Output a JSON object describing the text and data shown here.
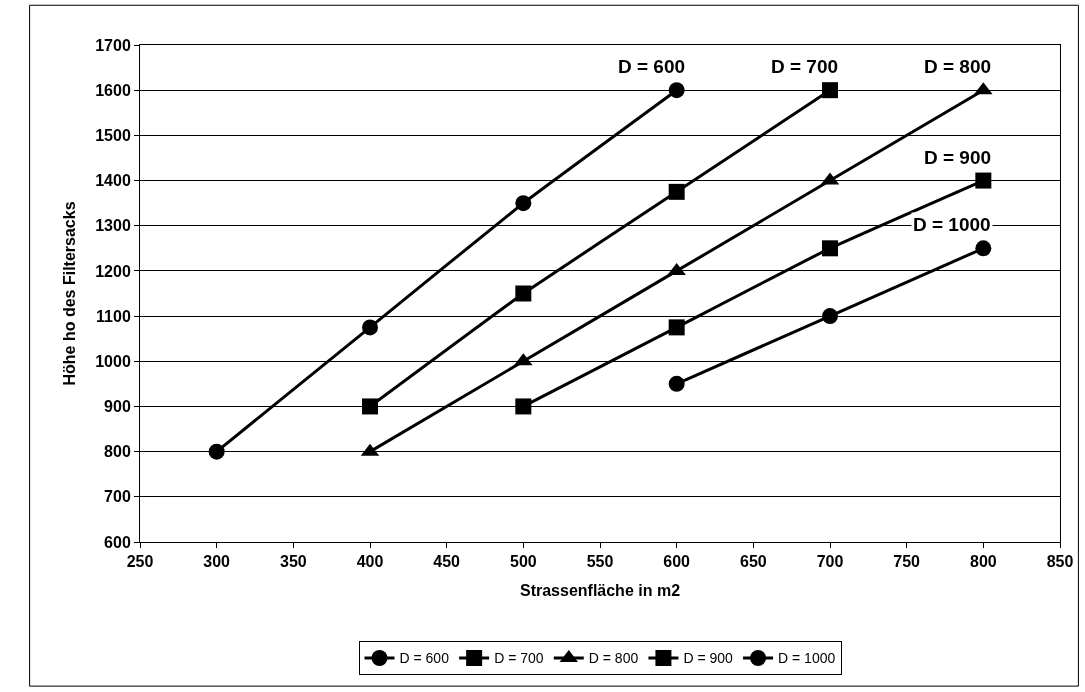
{
  "chart_data": {
    "type": "line",
    "xlabel": "Strassenfläche in m2",
    "ylabel": "Höhe ho des Filtersacks",
    "xlim": [
      250,
      850
    ],
    "xticks": [
      250,
      300,
      350,
      400,
      450,
      500,
      550,
      600,
      650,
      700,
      750,
      800,
      850
    ],
    "ylim": [
      600,
      1700
    ],
    "yticks": [
      600,
      700,
      800,
      900,
      1000,
      1100,
      1200,
      1300,
      1400,
      1500,
      1600,
      1700
    ],
    "grid": "y",
    "legend": "bottom",
    "series": [
      {
        "name": "D = 600",
        "color": "#000000",
        "marker": "circle",
        "x": [
          300,
          400,
          500,
          600
        ],
        "values": [
          800,
          1075,
          1350,
          1600
        ]
      },
      {
        "name": "D = 700",
        "color": "#000000",
        "marker": "square",
        "x": [
          400,
          500,
          600,
          700
        ],
        "values": [
          900,
          1150,
          1375,
          1600
        ]
      },
      {
        "name": "D = 800",
        "color": "#000000",
        "marker": "triangle",
        "x": [
          400,
          500,
          600,
          700,
          800
        ],
        "values": [
          800,
          1000,
          1200,
          1400,
          1600
        ]
      },
      {
        "name": "D = 900",
        "color": "#000000",
        "marker": "square",
        "x": [
          500,
          600,
          700,
          800
        ],
        "values": [
          900,
          1075,
          1250,
          1400
        ]
      },
      {
        "name": "D = 1000",
        "color": "#000000",
        "marker": "circle",
        "x": [
          600,
          700,
          800
        ],
        "values": [
          950,
          1100,
          1250
        ]
      }
    ],
    "annotations": [
      {
        "text": "D = 600",
        "x": 600,
        "y": 1600
      },
      {
        "text": "D = 700",
        "x": 700,
        "y": 1600
      },
      {
        "text": "D = 800",
        "x": 800,
        "y": 1600
      },
      {
        "text": "D = 900",
        "x": 800,
        "y": 1400
      },
      {
        "text": "D = 1000",
        "x": 800,
        "y": 1250
      }
    ]
  }
}
